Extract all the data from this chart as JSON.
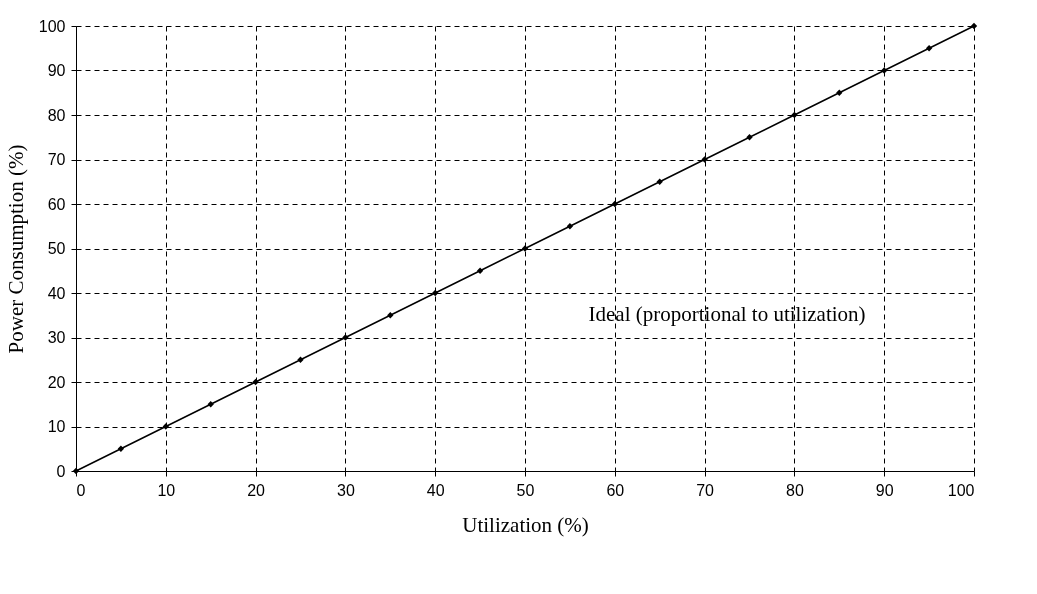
{
  "chart_data": {
    "type": "line",
    "x": [
      0,
      5,
      10,
      15,
      20,
      25,
      30,
      35,
      40,
      45,
      50,
      55,
      60,
      65,
      70,
      75,
      80,
      85,
      90,
      95,
      100
    ],
    "series": [
      {
        "color": "#000000",
        "values": [
          0,
          5,
          10,
          15,
          20,
          25,
          30,
          35,
          40,
          45,
          50,
          55,
          60,
          65,
          70,
          75,
          80,
          85,
          90,
          95,
          100
        ]
      }
    ],
    "xlabel": "Utilization (%)",
    "ylabel": "Power Consumption (%)",
    "xlim": [
      0,
      100
    ],
    "xticks": [
      0,
      10,
      20,
      30,
      40,
      50,
      60,
      70,
      80,
      90,
      100
    ],
    "ylim": [
      0,
      100
    ],
    "yticks": [
      0,
      10,
      20,
      30,
      40,
      50,
      60,
      70,
      80,
      90,
      100
    ],
    "grid": true,
    "marker": "diamond",
    "line_style": "solid",
    "annotations": [
      "Ideal (proportional to utilization)"
    ]
  }
}
